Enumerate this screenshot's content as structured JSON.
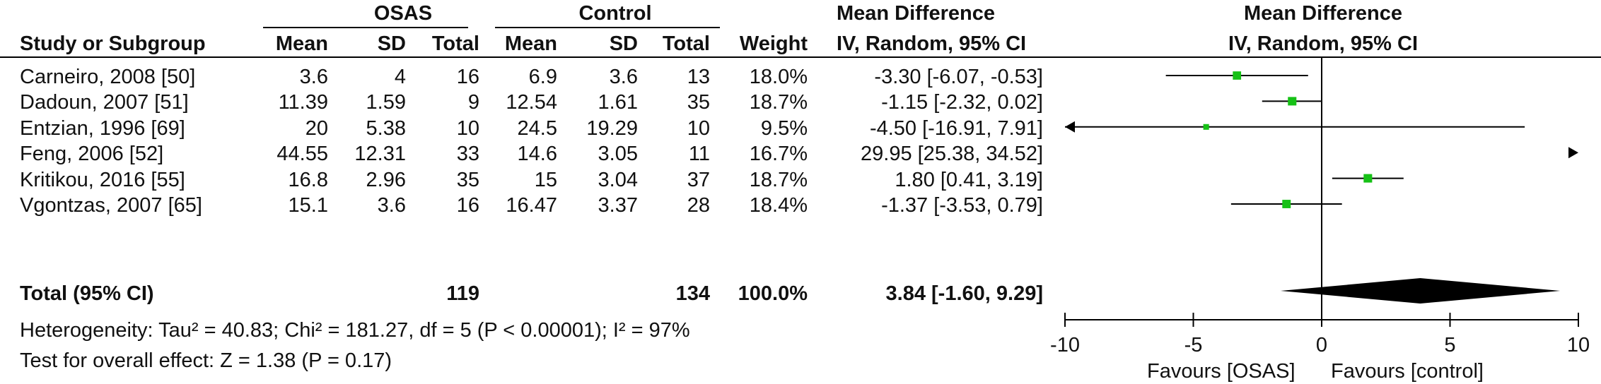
{
  "headers": {
    "group1": "OSAS",
    "group2": "Control",
    "effect_top": "Mean Difference",
    "effect_bottom": "IV, Random, 95% CI",
    "plot_top": "Mean Difference",
    "plot_bottom": "IV, Random, 95% CI",
    "study": "Study or Subgroup",
    "mean1": "Mean",
    "sd1": "SD",
    "total1": "Total",
    "mean2": "Mean",
    "sd2": "SD",
    "total2": "Total",
    "weight": "Weight"
  },
  "total_row": {
    "label": "Total (95% CI)",
    "total1": "119",
    "total2": "134",
    "weight": "100.0%",
    "ci_text": "3.84 [-1.60, 9.29]"
  },
  "heterogeneity": "Heterogeneity: Tau² = 40.83; Chi² = 181.27, df = 5 (P < 0.00001); I² = 97%",
  "overall_effect": "Test for overall effect: Z = 1.38 (P = 0.17)",
  "favours_left": "Favours [OSAS]",
  "favours_right": "Favours [control]",
  "chart_data": {
    "type": "forest",
    "axis": {
      "min": -10,
      "max": 10,
      "ticks": [
        -10,
        -5,
        0,
        5,
        10
      ],
      "tick_labels": [
        "-10",
        "-5",
        "0",
        "5",
        "10"
      ]
    },
    "studies": [
      {
        "name": "Carneiro, 2008 [50]",
        "mean1": "3.6",
        "sd1": "4",
        "total1": "16",
        "mean2": "6.9",
        "sd2": "3.6",
        "total2": "13",
        "weight_text": "18.0%",
        "ci_text": "-3.30 [-6.07, -0.53]",
        "md": -3.3,
        "lo": -6.07,
        "hi": -0.53,
        "weight": 18.0
      },
      {
        "name": "Dadoun, 2007 [51]",
        "mean1": "11.39",
        "sd1": "1.59",
        "total1": "9",
        "mean2": "12.54",
        "sd2": "1.61",
        "total2": "35",
        "weight_text": "18.7%",
        "ci_text": "-1.15 [-2.32, 0.02]",
        "md": -1.15,
        "lo": -2.32,
        "hi": 0.02,
        "weight": 18.7
      },
      {
        "name": "Entzian, 1996 [69]",
        "mean1": "20",
        "sd1": "5.38",
        "total1": "10",
        "mean2": "24.5",
        "sd2": "19.29",
        "total2": "10",
        "weight_text": "9.5%",
        "ci_text": "-4.50 [-16.91, 7.91]",
        "md": -4.5,
        "lo": -16.91,
        "hi": 7.91,
        "weight": 9.5
      },
      {
        "name": "Feng, 2006 [52]",
        "mean1": "44.55",
        "sd1": "12.31",
        "total1": "33",
        "mean2": "14.6",
        "sd2": "3.05",
        "total2": "11",
        "weight_text": "16.7%",
        "ci_text": "29.95 [25.38, 34.52]",
        "md": 29.95,
        "lo": 25.38,
        "hi": 34.52,
        "weight": 16.7
      },
      {
        "name": "Kritikou, 2016 [55]",
        "mean1": "16.8",
        "sd1": "2.96",
        "total1": "35",
        "mean2": "15",
        "sd2": "3.04",
        "total2": "37",
        "weight_text": "18.7%",
        "ci_text": "1.80 [0.41, 3.19]",
        "md": 1.8,
        "lo": 0.41,
        "hi": 3.19,
        "weight": 18.7
      },
      {
        "name": "Vgontzas, 2007 [65]",
        "mean1": "15.1",
        "sd1": "3.6",
        "total1": "16",
        "mean2": "16.47",
        "sd2": "3.37",
        "total2": "28",
        "weight_text": "18.4%",
        "ci_text": "-1.37 [-3.53, 0.79]",
        "md": -1.37,
        "lo": -3.53,
        "hi": 0.79,
        "weight": 18.4
      }
    ],
    "pooled": {
      "md": 3.84,
      "lo": -1.6,
      "hi": 9.29
    },
    "colors": {
      "square": "#16c116",
      "lines": "#000000",
      "diamond": "#000000"
    }
  }
}
